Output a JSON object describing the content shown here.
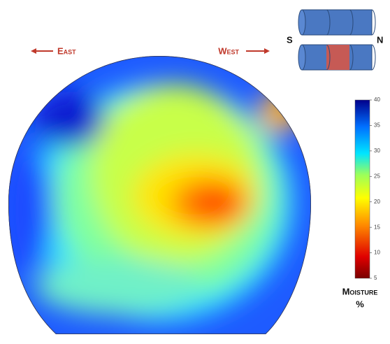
{
  "labels": {
    "east": "East",
    "west": "West",
    "south": "S",
    "north": "N"
  },
  "colorbar": {
    "title": "Moisture",
    "unit": "%",
    "lim": [
      5,
      40
    ],
    "ticks": [
      5,
      10,
      15,
      20,
      25,
      30,
      35,
      40
    ]
  }
}
